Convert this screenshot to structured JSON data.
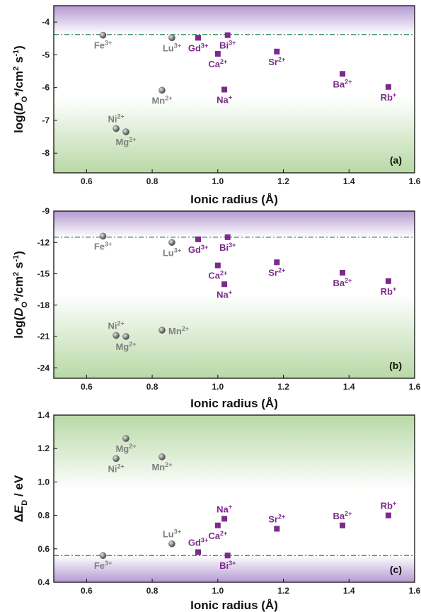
{
  "chart_data": [
    {
      "panel": "(a)",
      "type": "scatter",
      "xlabel": "Ionic radius (Å)",
      "ylabel_parts": [
        "log(",
        "D",
        "O",
        "*/cm",
        "2",
        " s",
        "-1",
        ")"
      ],
      "xlim": [
        0.5,
        1.6
      ],
      "ylim": [
        -8.6,
        -3.5
      ],
      "xticks": [
        0.6,
        0.8,
        1.0,
        1.2,
        1.4,
        1.6
      ],
      "yticks": [
        -8,
        -7,
        -6,
        -5,
        -4
      ],
      "ytick_labels": [
        "-8",
        "-7",
        "-6",
        "-5",
        "-4"
      ],
      "reference_line_y": -4.38,
      "bands": {
        "top": [
          -4.38,
          -3.5
        ],
        "bottom": [
          -8.6,
          -6.3
        ]
      },
      "points": [
        {
          "ion": "Fe",
          "charge": "3+",
          "x": 0.65,
          "y": -4.4,
          "group": "gray",
          "label_dx": 0,
          "label_dy": 1
        },
        {
          "ion": "Lu",
          "charge": "3+",
          "x": 0.86,
          "y": -4.48,
          "group": "gray",
          "label_dx": 0,
          "label_dy": 1
        },
        {
          "ion": "Mn",
          "charge": "2+",
          "x": 0.83,
          "y": -6.08,
          "group": "gray",
          "label_dx": 0,
          "label_dy": 1
        },
        {
          "ion": "Ni",
          "charge": "2+",
          "x": 0.69,
          "y": -7.25,
          "group": "gray",
          "label_dx": 0,
          "label_dy": -1
        },
        {
          "ion": "Mg",
          "charge": "2+",
          "x": 0.72,
          "y": -7.35,
          "group": "gray",
          "label_dx": 0,
          "label_dy": 1
        },
        {
          "ion": "Gd",
          "charge": "3+",
          "x": 0.94,
          "y": -4.48,
          "group": "purple",
          "label_dx": 0,
          "label_dy": 1
        },
        {
          "ion": "Bi",
          "charge": "3+",
          "x": 1.03,
          "y": -4.4,
          "group": "purple",
          "label_dx": 0,
          "label_dy": 1
        },
        {
          "ion": "Ca",
          "charge": "2+",
          "x": 1.0,
          "y": -4.97,
          "group": "purple",
          "label_dx": 0,
          "label_dy": 1
        },
        {
          "ion": "Sr",
          "charge": "2+",
          "x": 1.18,
          "y": -4.9,
          "group": "purple",
          "label_dx": 0,
          "label_dy": 1
        },
        {
          "ion": "Na",
          "charge": "+",
          "x": 1.02,
          "y": -6.06,
          "group": "purple",
          "label_dx": 0,
          "label_dy": 1
        },
        {
          "ion": "Ba",
          "charge": "2+",
          "x": 1.38,
          "y": -5.58,
          "group": "purple",
          "label_dx": 0,
          "label_dy": 1
        },
        {
          "ion": "Rb",
          "charge": "+",
          "x": 1.52,
          "y": -5.98,
          "group": "purple",
          "label_dx": 0,
          "label_dy": 1
        }
      ]
    },
    {
      "panel": "(b)",
      "type": "scatter",
      "xlabel": "Ionic radius (Å)",
      "ylabel_parts": [
        "log(",
        "D",
        "O",
        "*/cm",
        "2",
        " s",
        "-1",
        ")"
      ],
      "xlim": [
        0.5,
        1.6
      ],
      "ylim": [
        -25,
        -9
      ],
      "xticks": [
        0.6,
        0.8,
        1.0,
        1.2,
        1.4,
        1.6
      ],
      "yticks": [
        -24,
        -21,
        -18,
        -15,
        -12,
        -9
      ],
      "ytick_labels": [
        "-24",
        "-21",
        "-18",
        "-15",
        "-12",
        "-9"
      ],
      "reference_line_y": -11.5,
      "bands": {
        "top": [
          -11.5,
          -9
        ],
        "bottom": [
          -25,
          -17
        ]
      },
      "points": [
        {
          "ion": "Fe",
          "charge": "3+",
          "x": 0.65,
          "y": -11.4,
          "group": "gray",
          "label_dx": 0,
          "label_dy": 1
        },
        {
          "ion": "Lu",
          "charge": "3+",
          "x": 0.86,
          "y": -12.0,
          "group": "gray",
          "label_dx": 0,
          "label_dy": 1
        },
        {
          "ion": "Ni",
          "charge": "2+",
          "x": 0.69,
          "y": -20.9,
          "group": "gray",
          "label_dx": 0,
          "label_dy": -1
        },
        {
          "ion": "Mg",
          "charge": "2+",
          "x": 0.72,
          "y": -21.0,
          "group": "gray",
          "label_dx": 0,
          "label_dy": 1
        },
        {
          "ion": "Mn",
          "charge": "2+",
          "x": 0.83,
          "y": -20.4,
          "group": "gray",
          "label_dx": 1,
          "label_dy": 0
        },
        {
          "ion": "Gd",
          "charge": "3+",
          "x": 0.94,
          "y": -11.7,
          "group": "purple",
          "label_dx": 0,
          "label_dy": 1
        },
        {
          "ion": "Bi",
          "charge": "3+",
          "x": 1.03,
          "y": -11.5,
          "group": "purple",
          "label_dx": 0,
          "label_dy": 1
        },
        {
          "ion": "Ca",
          "charge": "2+",
          "x": 1.0,
          "y": -14.2,
          "group": "purple",
          "label_dx": 0,
          "label_dy": 1
        },
        {
          "ion": "Na",
          "charge": "+",
          "x": 1.02,
          "y": -16.0,
          "group": "purple",
          "label_dx": 0,
          "label_dy": 1
        },
        {
          "ion": "Sr",
          "charge": "2+",
          "x": 1.18,
          "y": -13.9,
          "group": "purple",
          "label_dx": 0,
          "label_dy": 1
        },
        {
          "ion": "Ba",
          "charge": "2+",
          "x": 1.38,
          "y": -14.9,
          "group": "purple",
          "label_dx": 0,
          "label_dy": 1
        },
        {
          "ion": "Rb",
          "charge": "+",
          "x": 1.52,
          "y": -15.7,
          "group": "purple",
          "label_dx": 0,
          "label_dy": 1
        }
      ]
    },
    {
      "panel": "(c)",
      "type": "scatter",
      "xlabel": "Ionic radius (Å)",
      "ylabel_parts": [
        "ΔE",
        "D",
        " / eV"
      ],
      "xlim": [
        0.5,
        1.6
      ],
      "ylim": [
        0.4,
        1.4
      ],
      "xticks": [
        0.6,
        0.8,
        1.0,
        1.2,
        1.4,
        1.6
      ],
      "yticks": [
        0.4,
        0.6,
        0.8,
        1.0,
        1.2,
        1.4
      ],
      "ytick_labels": [
        "0.4",
        "0.6",
        "0.8",
        "1.0",
        "1.2",
        "1.4"
      ],
      "reference_line_y": 0.56,
      "bands": {
        "top": [
          0.95,
          1.4
        ],
        "bottom": [
          0.4,
          0.56
        ]
      },
      "top_band_color": "green",
      "points": [
        {
          "ion": "Mg",
          "charge": "2+",
          "x": 0.72,
          "y": 1.26,
          "group": "gray",
          "label_dx": 0,
          "label_dy": 1
        },
        {
          "ion": "Ni",
          "charge": "2+",
          "x": 0.69,
          "y": 1.14,
          "group": "gray",
          "label_dx": 0,
          "label_dy": 1
        },
        {
          "ion": "Mn",
          "charge": "2+",
          "x": 0.83,
          "y": 1.15,
          "group": "gray",
          "label_dx": 0,
          "label_dy": 1
        },
        {
          "ion": "Lu",
          "charge": "3+",
          "x": 0.86,
          "y": 0.63,
          "group": "gray",
          "label_dx": 0,
          "label_dy": -1
        },
        {
          "ion": "Fe",
          "charge": "3+",
          "x": 0.65,
          "y": 0.56,
          "group": "gray",
          "label_dx": 0,
          "label_dy": 1
        },
        {
          "ion": "Gd",
          "charge": "3+",
          "x": 0.94,
          "y": 0.58,
          "group": "purple",
          "label_dx": 0,
          "label_dy": -1
        },
        {
          "ion": "Bi",
          "charge": "3+",
          "x": 1.03,
          "y": 0.56,
          "group": "purple",
          "label_dx": 0,
          "label_dy": 1
        },
        {
          "ion": "Na",
          "charge": "+",
          "x": 1.02,
          "y": 0.78,
          "group": "purple",
          "label_dx": 0,
          "label_dy": -1
        },
        {
          "ion": "Ca",
          "charge": "2+",
          "x": 1.0,
          "y": 0.74,
          "group": "purple",
          "label_dx": 0,
          "label_dy": 1
        },
        {
          "ion": "Sr",
          "charge": "2+",
          "x": 1.18,
          "y": 0.72,
          "group": "purple",
          "label_dx": 0,
          "label_dy": -1
        },
        {
          "ion": "Ba",
          "charge": "2+",
          "x": 1.38,
          "y": 0.74,
          "group": "purple",
          "label_dx": 0,
          "label_dy": -1
        },
        {
          "ion": "Rb",
          "charge": "+",
          "x": 1.52,
          "y": 0.8,
          "group": "purple",
          "label_dx": 0,
          "label_dy": -1
        }
      ]
    }
  ],
  "colors": {
    "purple_marker": "#7b2a8c",
    "gray_label": "#7f7f7f",
    "gray_marker": "#8a8a8a",
    "ref_line": "#2e8b57",
    "purple_band": "#b49ad2",
    "green_band": "#b8d9a6"
  }
}
